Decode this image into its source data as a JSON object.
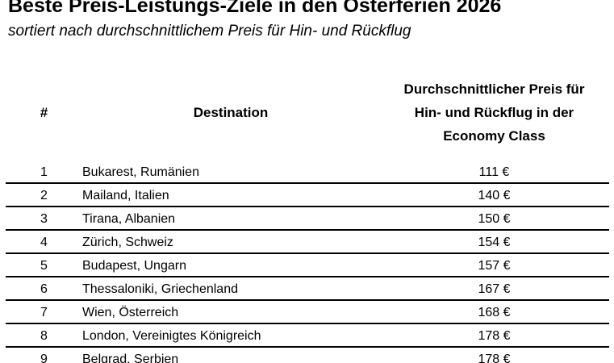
{
  "page": {
    "title": "Beste Preis-Leistungs-Ziele in den Osterferien 2026",
    "subtitle": "sortiert nach durchschnittlichem Preis für Hin- und Rückflug"
  },
  "table": {
    "columns": {
      "rank": "#",
      "destination": "Destination",
      "price": "Durchschnittlicher Preis für\nHin- und Rückflug in der\nEconomy Class"
    },
    "rows": [
      {
        "rank": "1",
        "destination": "Bukarest, Rumänien",
        "price": "111 €"
      },
      {
        "rank": "2",
        "destination": "Mailand, Italien",
        "price": "140 €"
      },
      {
        "rank": "3",
        "destination": "Tirana, Albanien",
        "price": "150 €"
      },
      {
        "rank": "4",
        "destination": "Zürich, Schweiz",
        "price": "154 €"
      },
      {
        "rank": "5",
        "destination": "Budapest, Ungarn",
        "price": "157 €"
      },
      {
        "rank": "6",
        "destination": "Thessaloniki, Griechenland",
        "price": "167 €"
      },
      {
        "rank": "7",
        "destination": "Wien, Österreich",
        "price": "168 €"
      },
      {
        "rank": "8",
        "destination": "London, Vereinigtes Königreich",
        "price": "178 €"
      },
      {
        "rank": "9",
        "destination": "Belgrad, Serbien",
        "price": "178 €"
      }
    ]
  },
  "colors": {
    "text": "#000000",
    "background": "#ffffff",
    "rule": "#000000"
  }
}
